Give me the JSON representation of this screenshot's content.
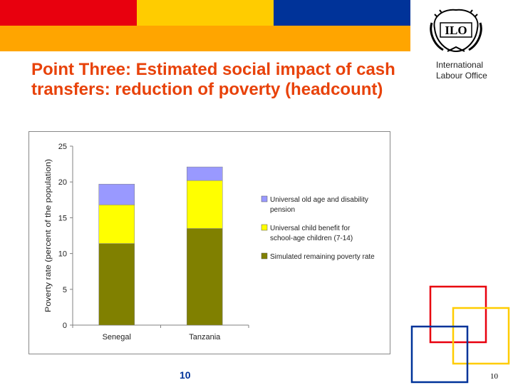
{
  "slide": {
    "title": "Point Three:  Estimated social impact of cash transfers: reduction of poverty (headcount)",
    "org_name": "International Labour Office",
    "logo_text": "ILO",
    "page_number": "10",
    "page_number_corner": "10"
  },
  "colors": {
    "band_red": "#e8000e",
    "band_yellow": "#ffcc00",
    "band_blue": "#003399",
    "band_orange": "#ffa500",
    "title": "#e8420a",
    "remaining": "#808000",
    "child_benefit": "#ffff00",
    "old_age": "#9999ff"
  },
  "chart_data": {
    "type": "bar",
    "stacked": true,
    "categories": [
      "Senegal",
      "Tanzania"
    ],
    "series": [
      {
        "name": "Simulated remaining poverty rate",
        "values": [
          11.4,
          13.5
        ],
        "color": "#808000"
      },
      {
        "name": "Universal child benefit for school-age children (7-14)",
        "values": [
          5.4,
          6.7
        ],
        "color": "#ffff00"
      },
      {
        "name": "Universal old age and disability pension",
        "values": [
          2.9,
          1.9
        ],
        "color": "#9999ff"
      }
    ],
    "legend_order": [
      2,
      1,
      0
    ],
    "legend_position": "right",
    "ylabel": "Poverty rate (percent of the population)",
    "xlabel": "",
    "ylim": [
      0,
      25
    ],
    "yticks": [
      0,
      5,
      10,
      15,
      20,
      25
    ],
    "grid": false
  }
}
